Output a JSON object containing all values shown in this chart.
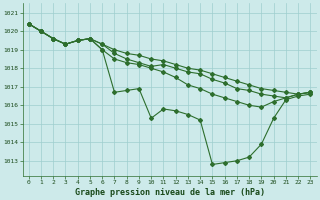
{
  "title": "Graphe pression niveau de la mer (hPa)",
  "bg_color": "#cdeaea",
  "grid_color": "#9ecece",
  "line_color": "#2d6e2d",
  "xlim": [
    -0.5,
    23.5
  ],
  "ylim": [
    1012.2,
    1021.5
  ],
  "yticks": [
    1013,
    1014,
    1015,
    1016,
    1017,
    1018,
    1019,
    1020,
    1021
  ],
  "xticks": [
    0,
    1,
    2,
    3,
    4,
    5,
    6,
    7,
    8,
    9,
    10,
    11,
    12,
    13,
    14,
    15,
    16,
    17,
    18,
    19,
    20,
    21,
    22,
    23
  ],
  "lines": [
    [
      1020.4,
      1020.0,
      1019.6,
      1019.3,
      1019.5,
      1019.6,
      1019.0,
      1016.7,
      1016.8,
      1016.9,
      1015.3,
      1015.8,
      1015.7,
      1015.5,
      1015.2,
      1012.8,
      1012.9,
      1013.0,
      1013.2,
      1013.9,
      1015.3,
      1016.3,
      1016.5,
      1016.6
    ],
    [
      1020.4,
      1020.0,
      1019.6,
      1019.3,
      1019.5,
      1019.6,
      1019.0,
      1018.5,
      1018.3,
      1018.2,
      1018.0,
      1017.8,
      1017.5,
      1017.1,
      1016.9,
      1016.6,
      1016.4,
      1016.2,
      1016.0,
      1015.9,
      1016.2,
      1016.4,
      1016.6,
      1016.7
    ],
    [
      1020.4,
      1020.0,
      1019.6,
      1019.3,
      1019.5,
      1019.6,
      1019.3,
      1018.8,
      1018.5,
      1018.3,
      1018.1,
      1018.2,
      1018.0,
      1017.8,
      1017.7,
      1017.4,
      1017.2,
      1016.9,
      1016.8,
      1016.6,
      1016.5,
      1016.4,
      1016.6,
      1016.7
    ],
    [
      1020.4,
      1020.0,
      1019.6,
      1019.3,
      1019.5,
      1019.6,
      1019.3,
      1019.0,
      1018.8,
      1018.7,
      1018.5,
      1018.4,
      1018.2,
      1018.0,
      1017.9,
      1017.7,
      1017.5,
      1017.3,
      1017.1,
      1016.9,
      1016.8,
      1016.7,
      1016.6,
      1016.7
    ]
  ]
}
